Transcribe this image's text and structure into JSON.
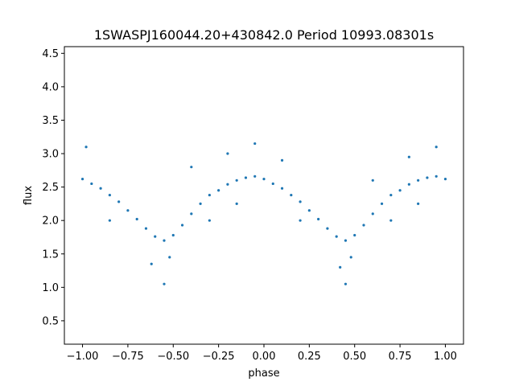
{
  "chart_data": {
    "type": "scatter",
    "title": "1SWASPJ160044.20+430842.0 Period 10993.08301s",
    "xlabel": "phase",
    "ylabel": "flux",
    "xlim": [
      -1.1,
      1.1
    ],
    "ylim": [
      0.15,
      4.6
    ],
    "grid": false,
    "legend": "none",
    "point_color": "#1f77b4",
    "xticks": [
      {
        "value": -1.0,
        "label": "−1.00"
      },
      {
        "value": -0.75,
        "label": "−0.75"
      },
      {
        "value": -0.5,
        "label": "−0.50"
      },
      {
        "value": -0.25,
        "label": "−0.25"
      },
      {
        "value": 0.0,
        "label": "0.00"
      },
      {
        "value": 0.25,
        "label": "0.25"
      },
      {
        "value": 0.5,
        "label": "0.50"
      },
      {
        "value": 0.75,
        "label": "0.75"
      },
      {
        "value": 1.0,
        "label": "1.00"
      }
    ],
    "yticks": [
      {
        "value": 0.5,
        "label": "0.5"
      },
      {
        "value": 1.0,
        "label": "1.0"
      },
      {
        "value": 1.5,
        "label": "1.5"
      },
      {
        "value": 2.0,
        "label": "2.0"
      },
      {
        "value": 2.5,
        "label": "2.5"
      },
      {
        "value": 3.0,
        "label": "3.0"
      },
      {
        "value": 3.5,
        "label": "3.5"
      },
      {
        "value": 4.0,
        "label": "4.0"
      },
      {
        "value": 4.5,
        "label": "4.5"
      }
    ],
    "series": [
      {
        "points": [
          [
            -1.0,
            2.62
          ],
          [
            -0.95,
            2.55
          ],
          [
            -0.9,
            2.48
          ],
          [
            -0.85,
            2.38
          ],
          [
            -0.8,
            2.28
          ],
          [
            -0.75,
            2.15
          ],
          [
            -0.7,
            2.02
          ],
          [
            -0.65,
            1.88
          ],
          [
            -0.6,
            1.76
          ],
          [
            -0.55,
            1.7
          ],
          [
            -0.5,
            1.78
          ],
          [
            -0.45,
            1.93
          ],
          [
            -0.4,
            2.1
          ],
          [
            -0.35,
            2.25
          ],
          [
            -0.3,
            2.38
          ],
          [
            -0.25,
            2.45
          ],
          [
            -0.2,
            2.54
          ],
          [
            -0.15,
            2.6
          ],
          [
            -0.1,
            2.64
          ],
          [
            -0.05,
            2.66
          ],
          [
            0.0,
            2.62
          ],
          [
            0.05,
            2.55
          ],
          [
            0.1,
            2.48
          ],
          [
            0.15,
            2.38
          ],
          [
            0.2,
            2.28
          ],
          [
            0.25,
            2.15
          ],
          [
            0.3,
            2.02
          ],
          [
            0.35,
            1.88
          ],
          [
            0.4,
            1.76
          ],
          [
            0.45,
            1.7
          ],
          [
            0.5,
            1.78
          ],
          [
            0.55,
            1.93
          ],
          [
            0.6,
            2.1
          ],
          [
            0.65,
            2.25
          ],
          [
            0.7,
            2.38
          ],
          [
            0.75,
            2.45
          ],
          [
            0.8,
            2.54
          ],
          [
            0.85,
            2.6
          ],
          [
            0.9,
            2.64
          ],
          [
            0.95,
            2.66
          ],
          [
            1.0,
            2.62
          ],
          [
            -0.98,
            3.1
          ],
          [
            -0.62,
            1.35
          ],
          [
            -0.55,
            1.05
          ],
          [
            -0.4,
            2.8
          ],
          [
            -0.2,
            3.0
          ],
          [
            -0.05,
            3.15
          ],
          [
            0.1,
            2.9
          ],
          [
            0.42,
            1.3
          ],
          [
            0.45,
            1.05
          ],
          [
            0.6,
            2.6
          ],
          [
            0.8,
            2.95
          ],
          [
            0.95,
            3.1
          ],
          [
            -0.85,
            2.0
          ],
          [
            -0.3,
            2.0
          ],
          [
            0.2,
            2.0
          ],
          [
            0.7,
            2.0
          ],
          [
            -0.52,
            1.45
          ],
          [
            0.48,
            1.45
          ],
          [
            -0.15,
            2.25
          ],
          [
            0.85,
            2.25
          ]
        ]
      }
    ]
  }
}
